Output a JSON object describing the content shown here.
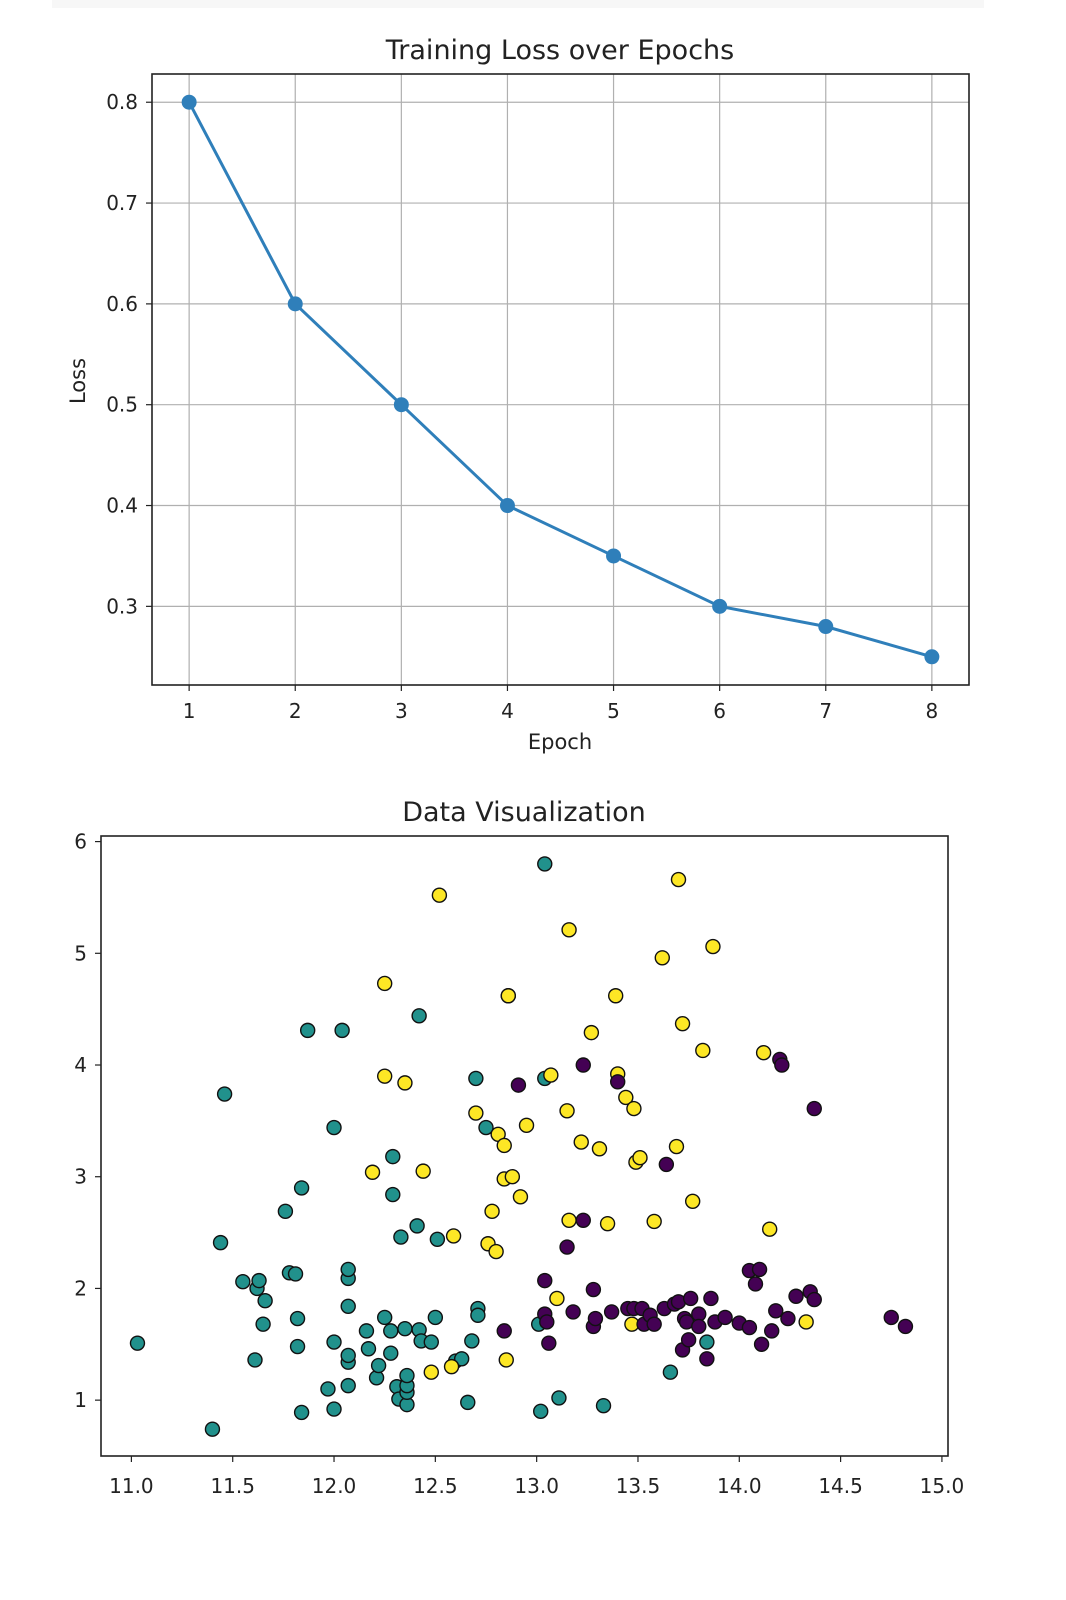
{
  "chart_data": [
    {
      "type": "line",
      "title": "Training Loss over Epochs",
      "xlabel": "Epoch",
      "ylabel": "Loss",
      "x": [
        1,
        2,
        3,
        4,
        5,
        6,
        7,
        8
      ],
      "series": [
        {
          "values": [
            0.8,
            0.6,
            0.5,
            0.4,
            0.35,
            0.3,
            0.28,
            0.25
          ],
          "color": "#2f7fba",
          "marker": "circle"
        }
      ],
      "xlim": [
        0.65,
        8.35
      ],
      "ylim": [
        0.222,
        0.828
      ],
      "xticks": [
        "1",
        "2",
        "3",
        "4",
        "5",
        "6",
        "7",
        "8"
      ],
      "yticks": [
        "0.3",
        "0.4",
        "0.5",
        "0.6",
        "0.7",
        "0.8"
      ],
      "grid": true
    },
    {
      "type": "scatter",
      "title": "Data Visualization",
      "xlabel": "",
      "ylabel": "",
      "xlim": [
        10.85,
        15.03
      ],
      "ylim": [
        0.5,
        6.05
      ],
      "xticks": [
        "11.0",
        "11.5",
        "12.0",
        "12.5",
        "13.0",
        "13.5",
        "14.0",
        "14.5",
        "15.0"
      ],
      "yticks": [
        "1",
        "2",
        "3",
        "4",
        "5",
        "6"
      ],
      "grid": false,
      "series": [
        {
          "color": "#21918c",
          "points": [
            [
              11.03,
              1.51
            ],
            [
              11.4,
              0.74
            ],
            [
              11.44,
              2.41
            ],
            [
              11.46,
              3.74
            ],
            [
              11.55,
              2.06
            ],
            [
              11.62,
              2.0
            ],
            [
              11.63,
              2.07
            ],
            [
              11.61,
              1.36
            ],
            [
              11.65,
              1.68
            ],
            [
              11.66,
              1.89
            ],
            [
              11.76,
              2.69
            ],
            [
              11.78,
              2.14
            ],
            [
              11.81,
              2.13
            ],
            [
              11.82,
              1.73
            ],
            [
              11.82,
              1.48
            ],
            [
              11.84,
              0.89
            ],
            [
              11.84,
              2.9
            ],
            [
              11.87,
              4.31
            ],
            [
              11.97,
              1.1
            ],
            [
              12.0,
              1.52
            ],
            [
              12.0,
              0.92
            ],
            [
              12.0,
              3.44
            ],
            [
              12.04,
              4.31
            ],
            [
              12.07,
              1.13
            ],
            [
              12.07,
              1.34
            ],
            [
              12.07,
              1.4
            ],
            [
              12.07,
              1.84
            ],
            [
              12.07,
              2.09
            ],
            [
              12.07,
              2.17
            ],
            [
              12.16,
              1.62
            ],
            [
              12.17,
              1.46
            ],
            [
              12.21,
              1.2
            ],
            [
              12.22,
              1.31
            ],
            [
              12.25,
              1.74
            ],
            [
              12.28,
              1.42
            ],
            [
              12.28,
              1.62
            ],
            [
              12.29,
              2.84
            ],
            [
              12.29,
              3.18
            ],
            [
              12.31,
              1.12
            ],
            [
              12.32,
              1.01
            ],
            [
              12.33,
              2.46
            ],
            [
              12.35,
              1.64
            ],
            [
              12.36,
              0.96
            ],
            [
              12.36,
              1.07
            ],
            [
              12.36,
              1.13
            ],
            [
              12.36,
              1.22
            ],
            [
              12.41,
              2.56
            ],
            [
              12.42,
              4.44
            ],
            [
              12.42,
              1.63
            ],
            [
              12.43,
              1.53
            ],
            [
              12.48,
              1.52
            ],
            [
              12.5,
              1.74
            ],
            [
              12.51,
              2.44
            ],
            [
              12.6,
              1.35
            ],
            [
              12.63,
              1.37
            ],
            [
              12.66,
              0.98
            ],
            [
              12.68,
              1.53
            ],
            [
              12.7,
              3.88
            ],
            [
              12.71,
              1.82
            ],
            [
              12.71,
              1.76
            ],
            [
              12.75,
              3.44
            ],
            [
              12.86,
              4.62
            ],
            [
              13.01,
              1.68
            ],
            [
              13.02,
              0.9
            ],
            [
              13.04,
              3.88
            ],
            [
              13.04,
              5.8
            ],
            [
              13.11,
              1.02
            ],
            [
              13.33,
              0.95
            ],
            [
              13.66,
              1.25
            ],
            [
              13.84,
              1.52
            ]
          ]
        },
        {
          "color": "#fde725",
          "points": [
            [
              12.19,
              3.04
            ],
            [
              12.25,
              4.73
            ],
            [
              12.25,
              3.9
            ],
            [
              12.35,
              3.84
            ],
            [
              12.44,
              3.05
            ],
            [
              12.48,
              1.25
            ],
            [
              12.52,
              5.52
            ],
            [
              12.58,
              1.3
            ],
            [
              12.59,
              2.47
            ],
            [
              12.7,
              3.57
            ],
            [
              12.76,
              2.4
            ],
            [
              12.78,
              2.69
            ],
            [
              12.8,
              2.33
            ],
            [
              12.81,
              3.38
            ],
            [
              12.84,
              2.98
            ],
            [
              12.84,
              3.28
            ],
            [
              12.85,
              1.36
            ],
            [
              12.86,
              4.62
            ],
            [
              12.88,
              3.0
            ],
            [
              12.92,
              2.82
            ],
            [
              12.95,
              3.46
            ],
            [
              13.07,
              3.91
            ],
            [
              13.1,
              1.91
            ],
            [
              13.15,
              3.59
            ],
            [
              13.16,
              2.61
            ],
            [
              13.16,
              5.21
            ],
            [
              13.22,
              3.31
            ],
            [
              13.27,
              4.29
            ],
            [
              13.31,
              3.25
            ],
            [
              13.35,
              2.58
            ],
            [
              13.39,
              4.62
            ],
            [
              13.4,
              3.92
            ],
            [
              13.44,
              3.71
            ],
            [
              13.47,
              1.68
            ],
            [
              13.48,
              3.61
            ],
            [
              13.49,
              3.13
            ],
            [
              13.51,
              3.17
            ],
            [
              13.58,
              2.6
            ],
            [
              13.62,
              4.96
            ],
            [
              13.69,
              3.27
            ],
            [
              13.7,
              5.66
            ],
            [
              13.72,
              4.37
            ],
            [
              13.77,
              2.78
            ],
            [
              13.82,
              4.13
            ],
            [
              13.87,
              5.06
            ],
            [
              14.12,
              4.11
            ],
            [
              14.15,
              2.53
            ],
            [
              14.33,
              1.7
            ]
          ]
        },
        {
          "color": "#440154",
          "points": [
            [
              12.84,
              1.62
            ],
            [
              12.91,
              3.82
            ],
            [
              13.04,
              2.07
            ],
            [
              13.04,
              1.77
            ],
            [
              13.05,
              1.7
            ],
            [
              13.06,
              1.51
            ],
            [
              13.15,
              2.37
            ],
            [
              13.18,
              1.79
            ],
            [
              13.23,
              4.0
            ],
            [
              13.23,
              2.61
            ],
            [
              13.28,
              1.66
            ],
            [
              13.28,
              1.99
            ],
            [
              13.29,
              1.73
            ],
            [
              13.37,
              1.79
            ],
            [
              13.4,
              3.85
            ],
            [
              13.45,
              1.82
            ],
            [
              13.48,
              1.82
            ],
            [
              13.52,
              1.82
            ],
            [
              13.53,
              1.68
            ],
            [
              13.56,
              1.76
            ],
            [
              13.58,
              1.68
            ],
            [
              13.63,
              1.82
            ],
            [
              13.64,
              3.11
            ],
            [
              13.68,
              1.86
            ],
            [
              13.7,
              1.88
            ],
            [
              13.72,
              1.45
            ],
            [
              13.73,
              1.73
            ],
            [
              13.74,
              1.7
            ],
            [
              13.75,
              1.54
            ],
            [
              13.76,
              1.91
            ],
            [
              13.8,
              1.77
            ],
            [
              13.8,
              1.66
            ],
            [
              13.84,
              1.37
            ],
            [
              13.86,
              1.91
            ],
            [
              13.88,
              1.7
            ],
            [
              13.93,
              1.74
            ],
            [
              14.0,
              1.69
            ],
            [
              14.05,
              1.65
            ],
            [
              14.05,
              2.16
            ],
            [
              14.08,
              2.04
            ],
            [
              14.1,
              2.17
            ],
            [
              14.11,
              1.5
            ],
            [
              14.16,
              1.62
            ],
            [
              14.18,
              1.8
            ],
            [
              14.2,
              4.05
            ],
            [
              14.21,
              4.0
            ],
            [
              14.24,
              1.73
            ],
            [
              14.28,
              1.93
            ],
            [
              14.35,
              1.97
            ],
            [
              14.37,
              1.9
            ],
            [
              14.37,
              3.61
            ],
            [
              14.75,
              1.74
            ],
            [
              14.82,
              1.66
            ]
          ]
        }
      ]
    }
  ]
}
